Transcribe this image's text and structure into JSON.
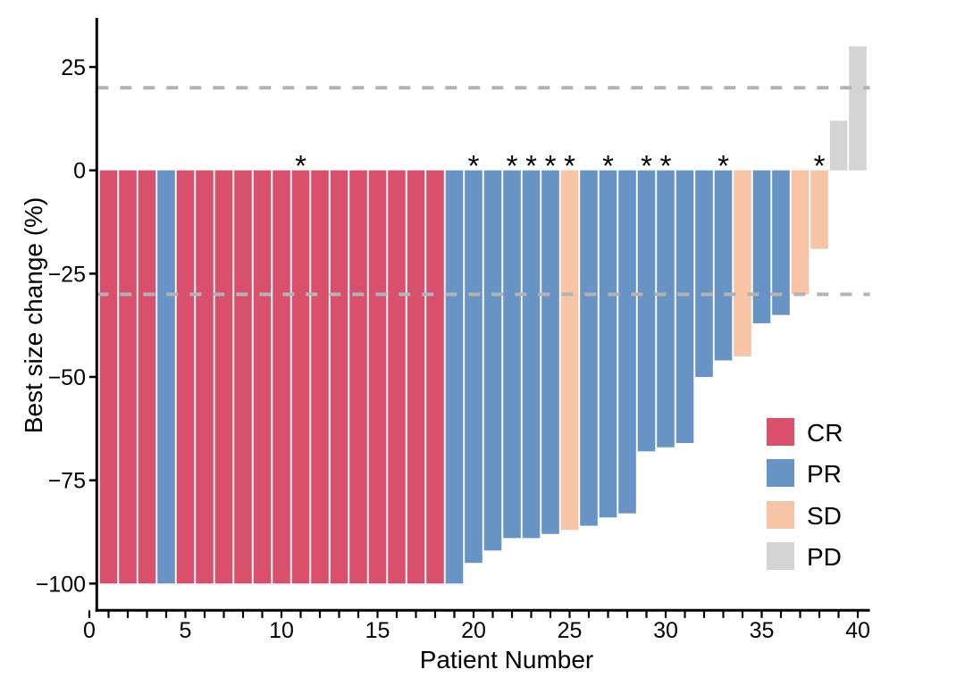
{
  "figure": {
    "description": "Waterfall plot of best tumor size change per patient"
  },
  "chart_data": {
    "type": "bar",
    "title": "",
    "xlabel": "Patient Number",
    "ylabel": "Best size change (%)",
    "xlim": [
      0,
      40
    ],
    "ylim": [
      -106,
      37
    ],
    "grid": false,
    "x_labeled_ticks": [
      0,
      5,
      10,
      15,
      20,
      25,
      30,
      35,
      40
    ],
    "x_minor_tick_every": 1,
    "y_ticks": [
      {
        "value": 25,
        "label": "25"
      },
      {
        "value": 0,
        "label": "0"
      },
      {
        "value": -25,
        "label": "−25"
      },
      {
        "value": -50,
        "label": "−50"
      },
      {
        "value": -75,
        "label": "−75"
      },
      {
        "value": -100,
        "label": "−100"
      }
    ],
    "reference_lines": [
      {
        "value": 20,
        "style": "dashed",
        "color": "#b3b3b3"
      },
      {
        "value": -30,
        "style": "dashed",
        "color": "#b3b3b3"
      }
    ],
    "legend": {
      "position": "inside-right",
      "entries": [
        {
          "label": "CR",
          "color": "#d8506c"
        },
        {
          "label": "PR",
          "color": "#6793c5"
        },
        {
          "label": "SD",
          "color": "#f7c4a6"
        },
        {
          "label": "PD",
          "color": "#d4d4d4"
        }
      ]
    },
    "annotation_symbol": "*",
    "points": [
      {
        "patient": 1,
        "value": -100,
        "response": "CR",
        "asterisk": false
      },
      {
        "patient": 2,
        "value": -100,
        "response": "CR",
        "asterisk": false
      },
      {
        "patient": 3,
        "value": -100,
        "response": "CR",
        "asterisk": false
      },
      {
        "patient": 4,
        "value": -100,
        "response": "PR",
        "asterisk": false
      },
      {
        "patient": 5,
        "value": -100,
        "response": "CR",
        "asterisk": false
      },
      {
        "patient": 6,
        "value": -100,
        "response": "CR",
        "asterisk": false
      },
      {
        "patient": 7,
        "value": -100,
        "response": "CR",
        "asterisk": false
      },
      {
        "patient": 8,
        "value": -100,
        "response": "CR",
        "asterisk": false
      },
      {
        "patient": 9,
        "value": -100,
        "response": "CR",
        "asterisk": false
      },
      {
        "patient": 10,
        "value": -100,
        "response": "CR",
        "asterisk": false
      },
      {
        "patient": 11,
        "value": -100,
        "response": "CR",
        "asterisk": true
      },
      {
        "patient": 12,
        "value": -100,
        "response": "CR",
        "asterisk": false
      },
      {
        "patient": 13,
        "value": -100,
        "response": "CR",
        "asterisk": false
      },
      {
        "patient": 14,
        "value": -100,
        "response": "CR",
        "asterisk": false
      },
      {
        "patient": 15,
        "value": -100,
        "response": "CR",
        "asterisk": false
      },
      {
        "patient": 16,
        "value": -100,
        "response": "CR",
        "asterisk": false
      },
      {
        "patient": 17,
        "value": -100,
        "response": "CR",
        "asterisk": false
      },
      {
        "patient": 18,
        "value": -100,
        "response": "CR",
        "asterisk": false
      },
      {
        "patient": 19,
        "value": -100,
        "response": "PR",
        "asterisk": false
      },
      {
        "patient": 20,
        "value": -95,
        "response": "PR",
        "asterisk": true
      },
      {
        "patient": 21,
        "value": -92,
        "response": "PR",
        "asterisk": false
      },
      {
        "patient": 22,
        "value": -89,
        "response": "PR",
        "asterisk": true
      },
      {
        "patient": 23,
        "value": -89,
        "response": "PR",
        "asterisk": true
      },
      {
        "patient": 24,
        "value": -88,
        "response": "PR",
        "asterisk": true
      },
      {
        "patient": 25,
        "value": -87,
        "response": "SD",
        "asterisk": true
      },
      {
        "patient": 26,
        "value": -86,
        "response": "PR",
        "asterisk": false
      },
      {
        "patient": 27,
        "value": -84,
        "response": "PR",
        "asterisk": true
      },
      {
        "patient": 28,
        "value": -83,
        "response": "PR",
        "asterisk": false
      },
      {
        "patient": 29,
        "value": -68,
        "response": "PR",
        "asterisk": true
      },
      {
        "patient": 30,
        "value": -67,
        "response": "PR",
        "asterisk": true
      },
      {
        "patient": 31,
        "value": -66,
        "response": "PR",
        "asterisk": false
      },
      {
        "patient": 32,
        "value": -50,
        "response": "PR",
        "asterisk": false
      },
      {
        "patient": 33,
        "value": -46,
        "response": "PR",
        "asterisk": true
      },
      {
        "patient": 34,
        "value": -45,
        "response": "SD",
        "asterisk": false
      },
      {
        "patient": 35,
        "value": -37,
        "response": "PR",
        "asterisk": false
      },
      {
        "patient": 36,
        "value": -35,
        "response": "PR",
        "asterisk": false
      },
      {
        "patient": 37,
        "value": -30,
        "response": "SD",
        "asterisk": false
      },
      {
        "patient": 38,
        "value": -19,
        "response": "SD",
        "asterisk": true
      },
      {
        "patient": 39,
        "value": 12,
        "response": "PD",
        "asterisk": false
      },
      {
        "patient": 40,
        "value": 30,
        "response": "PD",
        "asterisk": false
      }
    ]
  }
}
